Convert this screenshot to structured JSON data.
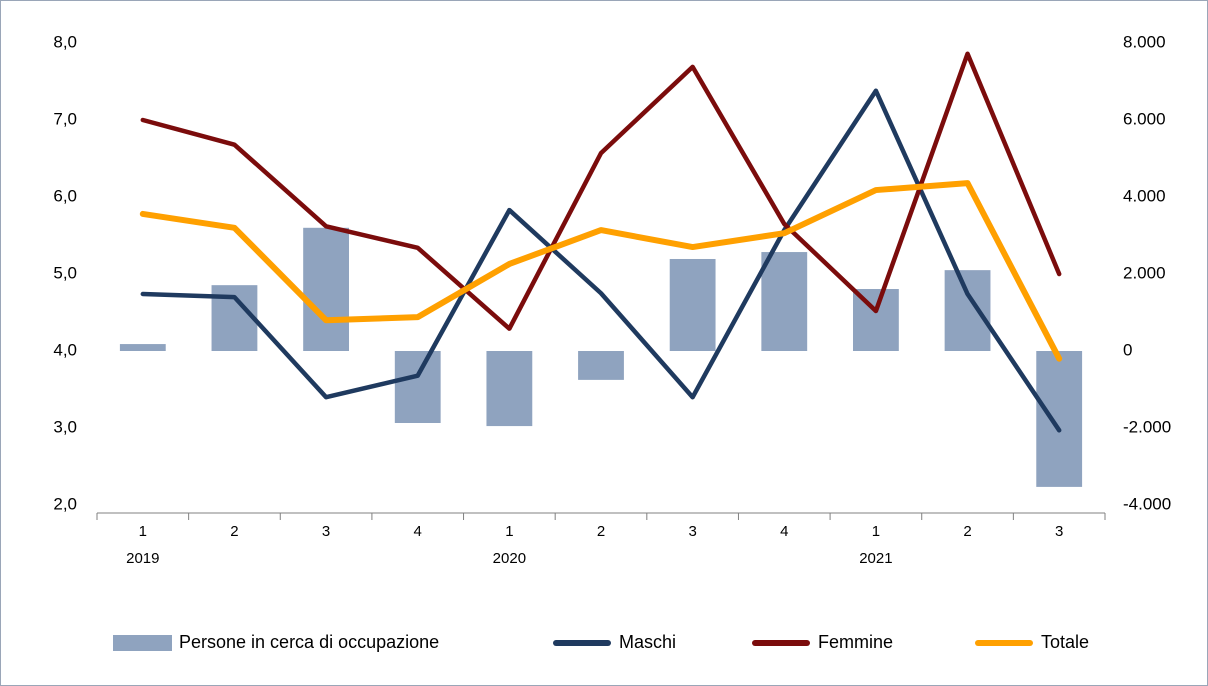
{
  "chart_data": {
    "type": "bar-line",
    "categories": [
      "1",
      "2",
      "3",
      "4",
      "1",
      "2",
      "3",
      "4",
      "1",
      "2",
      "3"
    ],
    "years": [
      "2019",
      null,
      null,
      null,
      "2020",
      null,
      null,
      null,
      "2021",
      null,
      null
    ],
    "ylim": [
      2,
      8
    ],
    "yticks": [
      {
        "value": 2,
        "label": "2,0"
      },
      {
        "value": 3,
        "label": "3,0"
      },
      {
        "value": 4,
        "label": "4,0"
      },
      {
        "value": 5,
        "label": "5,0"
      },
      {
        "value": 6,
        "label": "6,0"
      },
      {
        "value": 7,
        "label": "7,0"
      },
      {
        "value": 8,
        "label": "8,0"
      }
    ],
    "y2lim": [
      -4000,
      8000
    ],
    "y2ticks": [
      {
        "value": -4000,
        "label": "-4.000"
      },
      {
        "value": -2000,
        "label": "-2.000"
      },
      0,
      {
        "value": 2000,
        "label": "2.000"
      },
      {
        "value": 4000,
        "label": "4.000"
      },
      {
        "value": 6000,
        "label": "6.000"
      },
      {
        "value": 8000,
        "label": "8.000"
      }
    ],
    "series": [
      {
        "name": "Persone in cerca di occupazione",
        "kind": "bar",
        "axis": "y2",
        "color": "#8fa3bf",
        "values": [
          180,
          1710,
          3200,
          -1870,
          -1950,
          -750,
          2390,
          2570,
          1610,
          2100,
          -3530
        ]
      },
      {
        "name": "Maschi",
        "kind": "line",
        "color": "#1f3a5f",
        "values": [
          4.74,
          4.7,
          3.4,
          3.68,
          5.83,
          4.75,
          3.4,
          5.57,
          7.38,
          4.74,
          2.97
        ]
      },
      {
        "name": "Femmine",
        "kind": "line",
        "color": "#7b0c0c",
        "values": [
          7.0,
          6.68,
          5.62,
          5.34,
          4.29,
          6.57,
          7.69,
          5.65,
          4.52,
          7.86,
          5.0
        ]
      },
      {
        "name": "Totale",
        "kind": "line",
        "color": "#ffa000",
        "values": [
          5.78,
          5.6,
          4.4,
          4.44,
          5.13,
          5.57,
          5.35,
          5.53,
          6.09,
          6.18,
          3.9
        ]
      }
    ]
  }
}
